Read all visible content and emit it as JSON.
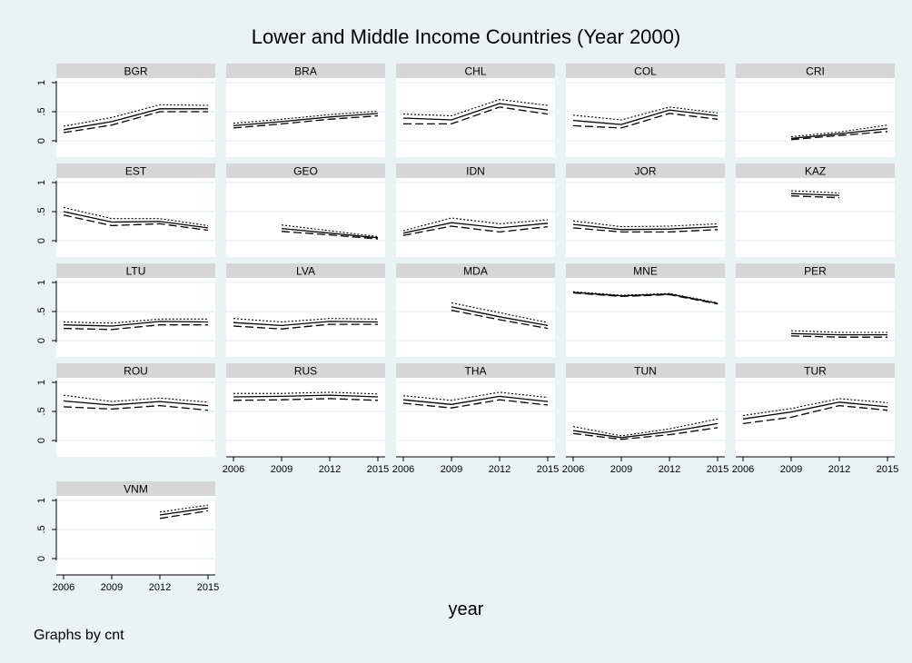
{
  "chart_data": {
    "type": "line",
    "title": "Lower and Middle Income Countries (Year 2000)",
    "xlabel": "year",
    "note": "Graphs by cnt",
    "x_ticks": [
      2006,
      2009,
      2012,
      2015
    ],
    "y_ticks": [
      0,
      0.5,
      1
    ],
    "y_tick_labels": [
      "0",
      ".5",
      "1"
    ],
    "ylim": [
      0,
      1
    ],
    "xlim": [
      2006,
      2015
    ],
    "grid": true,
    "colors": {
      "background": "#eaf2f3",
      "panel": "#ffffff",
      "strip": "#d6d6d6",
      "line": "#000000",
      "grid": "#e1e8ea"
    },
    "panels": [
      {
        "name": "BGR",
        "x": [
          2006,
          2009,
          2012,
          2015
        ],
        "upper": [
          0.25,
          0.4,
          0.62,
          0.61
        ],
        "mid": [
          0.19,
          0.33,
          0.55,
          0.55
        ],
        "lower": [
          0.14,
          0.27,
          0.5,
          0.5
        ]
      },
      {
        "name": "BRA",
        "x": [
          2006,
          2009,
          2012,
          2015
        ],
        "upper": [
          0.3,
          0.37,
          0.45,
          0.51
        ],
        "mid": [
          0.26,
          0.33,
          0.41,
          0.47
        ],
        "lower": [
          0.22,
          0.29,
          0.37,
          0.43
        ]
      },
      {
        "name": "CHL",
        "x": [
          2006,
          2009,
          2012,
          2015
        ],
        "upper": [
          0.46,
          0.43,
          0.71,
          0.61
        ],
        "mid": [
          0.39,
          0.36,
          0.64,
          0.53
        ],
        "lower": [
          0.29,
          0.29,
          0.58,
          0.46
        ]
      },
      {
        "name": "COL",
        "x": [
          2006,
          2009,
          2012,
          2015
        ],
        "upper": [
          0.44,
          0.36,
          0.58,
          0.48
        ],
        "mid": [
          0.35,
          0.28,
          0.53,
          0.43
        ],
        "lower": [
          0.26,
          0.22,
          0.47,
          0.37
        ]
      },
      {
        "name": "CRI",
        "x": [
          2009,
          2012,
          2015
        ],
        "upper": [
          0.07,
          0.15,
          0.27
        ],
        "mid": [
          0.04,
          0.12,
          0.21
        ],
        "lower": [
          0.02,
          0.09,
          0.16
        ]
      },
      {
        "name": "EST",
        "x": [
          2006,
          2009,
          2012,
          2015
        ],
        "upper": [
          0.57,
          0.38,
          0.38,
          0.26
        ],
        "mid": [
          0.5,
          0.32,
          0.33,
          0.22
        ],
        "lower": [
          0.44,
          0.26,
          0.29,
          0.18
        ]
      },
      {
        "name": "GEO",
        "x": [
          2009,
          2012,
          2015
        ],
        "upper": [
          0.27,
          0.17,
          0.07
        ],
        "mid": [
          0.21,
          0.13,
          0.05
        ],
        "lower": [
          0.16,
          0.1,
          0.03
        ]
      },
      {
        "name": "IDN",
        "x": [
          2006,
          2009,
          2012,
          2015
        ],
        "upper": [
          0.17,
          0.39,
          0.29,
          0.36
        ],
        "mid": [
          0.13,
          0.31,
          0.22,
          0.3
        ],
        "lower": [
          0.09,
          0.25,
          0.15,
          0.24
        ]
      },
      {
        "name": "JOR",
        "x": [
          2006,
          2009,
          2012,
          2015
        ],
        "upper": [
          0.34,
          0.24,
          0.25,
          0.29
        ],
        "mid": [
          0.28,
          0.19,
          0.2,
          0.24
        ],
        "lower": [
          0.22,
          0.15,
          0.15,
          0.19
        ]
      },
      {
        "name": "KAZ",
        "x": [
          2009,
          2012
        ],
        "upper": [
          0.86,
          0.82
        ],
        "mid": [
          0.81,
          0.78
        ],
        "lower": [
          0.77,
          0.74
        ]
      },
      {
        "name": "LTU",
        "x": [
          2006,
          2009,
          2012,
          2015
        ],
        "upper": [
          0.32,
          0.3,
          0.37,
          0.37
        ],
        "mid": [
          0.27,
          0.25,
          0.33,
          0.32
        ],
        "lower": [
          0.21,
          0.19,
          0.27,
          0.27
        ]
      },
      {
        "name": "LVA",
        "x": [
          2006,
          2009,
          2012,
          2015
        ],
        "upper": [
          0.38,
          0.32,
          0.38,
          0.37
        ],
        "mid": [
          0.31,
          0.26,
          0.33,
          0.32
        ],
        "lower": [
          0.25,
          0.2,
          0.28,
          0.28
        ]
      },
      {
        "name": "MDA",
        "x": [
          2009,
          2012,
          2015
        ],
        "upper": [
          0.65,
          0.48,
          0.31
        ],
        "mid": [
          0.58,
          0.41,
          0.26
        ],
        "lower": [
          0.52,
          0.36,
          0.21
        ]
      },
      {
        "name": "MNE",
        "x": [
          2006,
          2009,
          2012,
          2015
        ],
        "upper": [
          0.84,
          0.78,
          0.81,
          0.65
        ],
        "mid": [
          0.83,
          0.77,
          0.8,
          0.64
        ],
        "lower": [
          0.82,
          0.76,
          0.79,
          0.63
        ]
      },
      {
        "name": "PER",
        "x": [
          2009,
          2012,
          2015
        ],
        "upper": [
          0.17,
          0.14,
          0.14
        ],
        "mid": [
          0.12,
          0.1,
          0.1
        ],
        "lower": [
          0.08,
          0.06,
          0.06
        ]
      },
      {
        "name": "ROU",
        "x": [
          2006,
          2009,
          2012,
          2015
        ],
        "upper": [
          0.78,
          0.67,
          0.73,
          0.66
        ],
        "mid": [
          0.68,
          0.61,
          0.67,
          0.6
        ],
        "lower": [
          0.58,
          0.54,
          0.6,
          0.52
        ]
      },
      {
        "name": "RUS",
        "x": [
          2006,
          2009,
          2012,
          2015
        ],
        "upper": [
          0.81,
          0.81,
          0.83,
          0.8
        ],
        "mid": [
          0.75,
          0.76,
          0.78,
          0.75
        ],
        "lower": [
          0.69,
          0.7,
          0.72,
          0.69
        ]
      },
      {
        "name": "THA",
        "x": [
          2006,
          2009,
          2012,
          2015
        ],
        "upper": [
          0.77,
          0.69,
          0.83,
          0.74
        ],
        "mid": [
          0.7,
          0.62,
          0.76,
          0.67
        ],
        "lower": [
          0.64,
          0.56,
          0.7,
          0.61
        ]
      },
      {
        "name": "TUN",
        "x": [
          2006,
          2009,
          2012,
          2015
        ],
        "upper": [
          0.24,
          0.08,
          0.2,
          0.37
        ],
        "mid": [
          0.17,
          0.05,
          0.15,
          0.29
        ],
        "lower": [
          0.12,
          0.02,
          0.1,
          0.22
        ]
      },
      {
        "name": "TUR",
        "x": [
          2006,
          2009,
          2012,
          2015
        ],
        "upper": [
          0.43,
          0.55,
          0.72,
          0.65
        ],
        "mid": [
          0.37,
          0.49,
          0.66,
          0.58
        ],
        "lower": [
          0.29,
          0.4,
          0.6,
          0.52
        ]
      },
      {
        "name": "VNM",
        "x": [
          2012,
          2015
        ],
        "upper": [
          0.8,
          0.92
        ],
        "mid": [
          0.75,
          0.87
        ],
        "lower": [
          0.69,
          0.82
        ]
      }
    ]
  }
}
